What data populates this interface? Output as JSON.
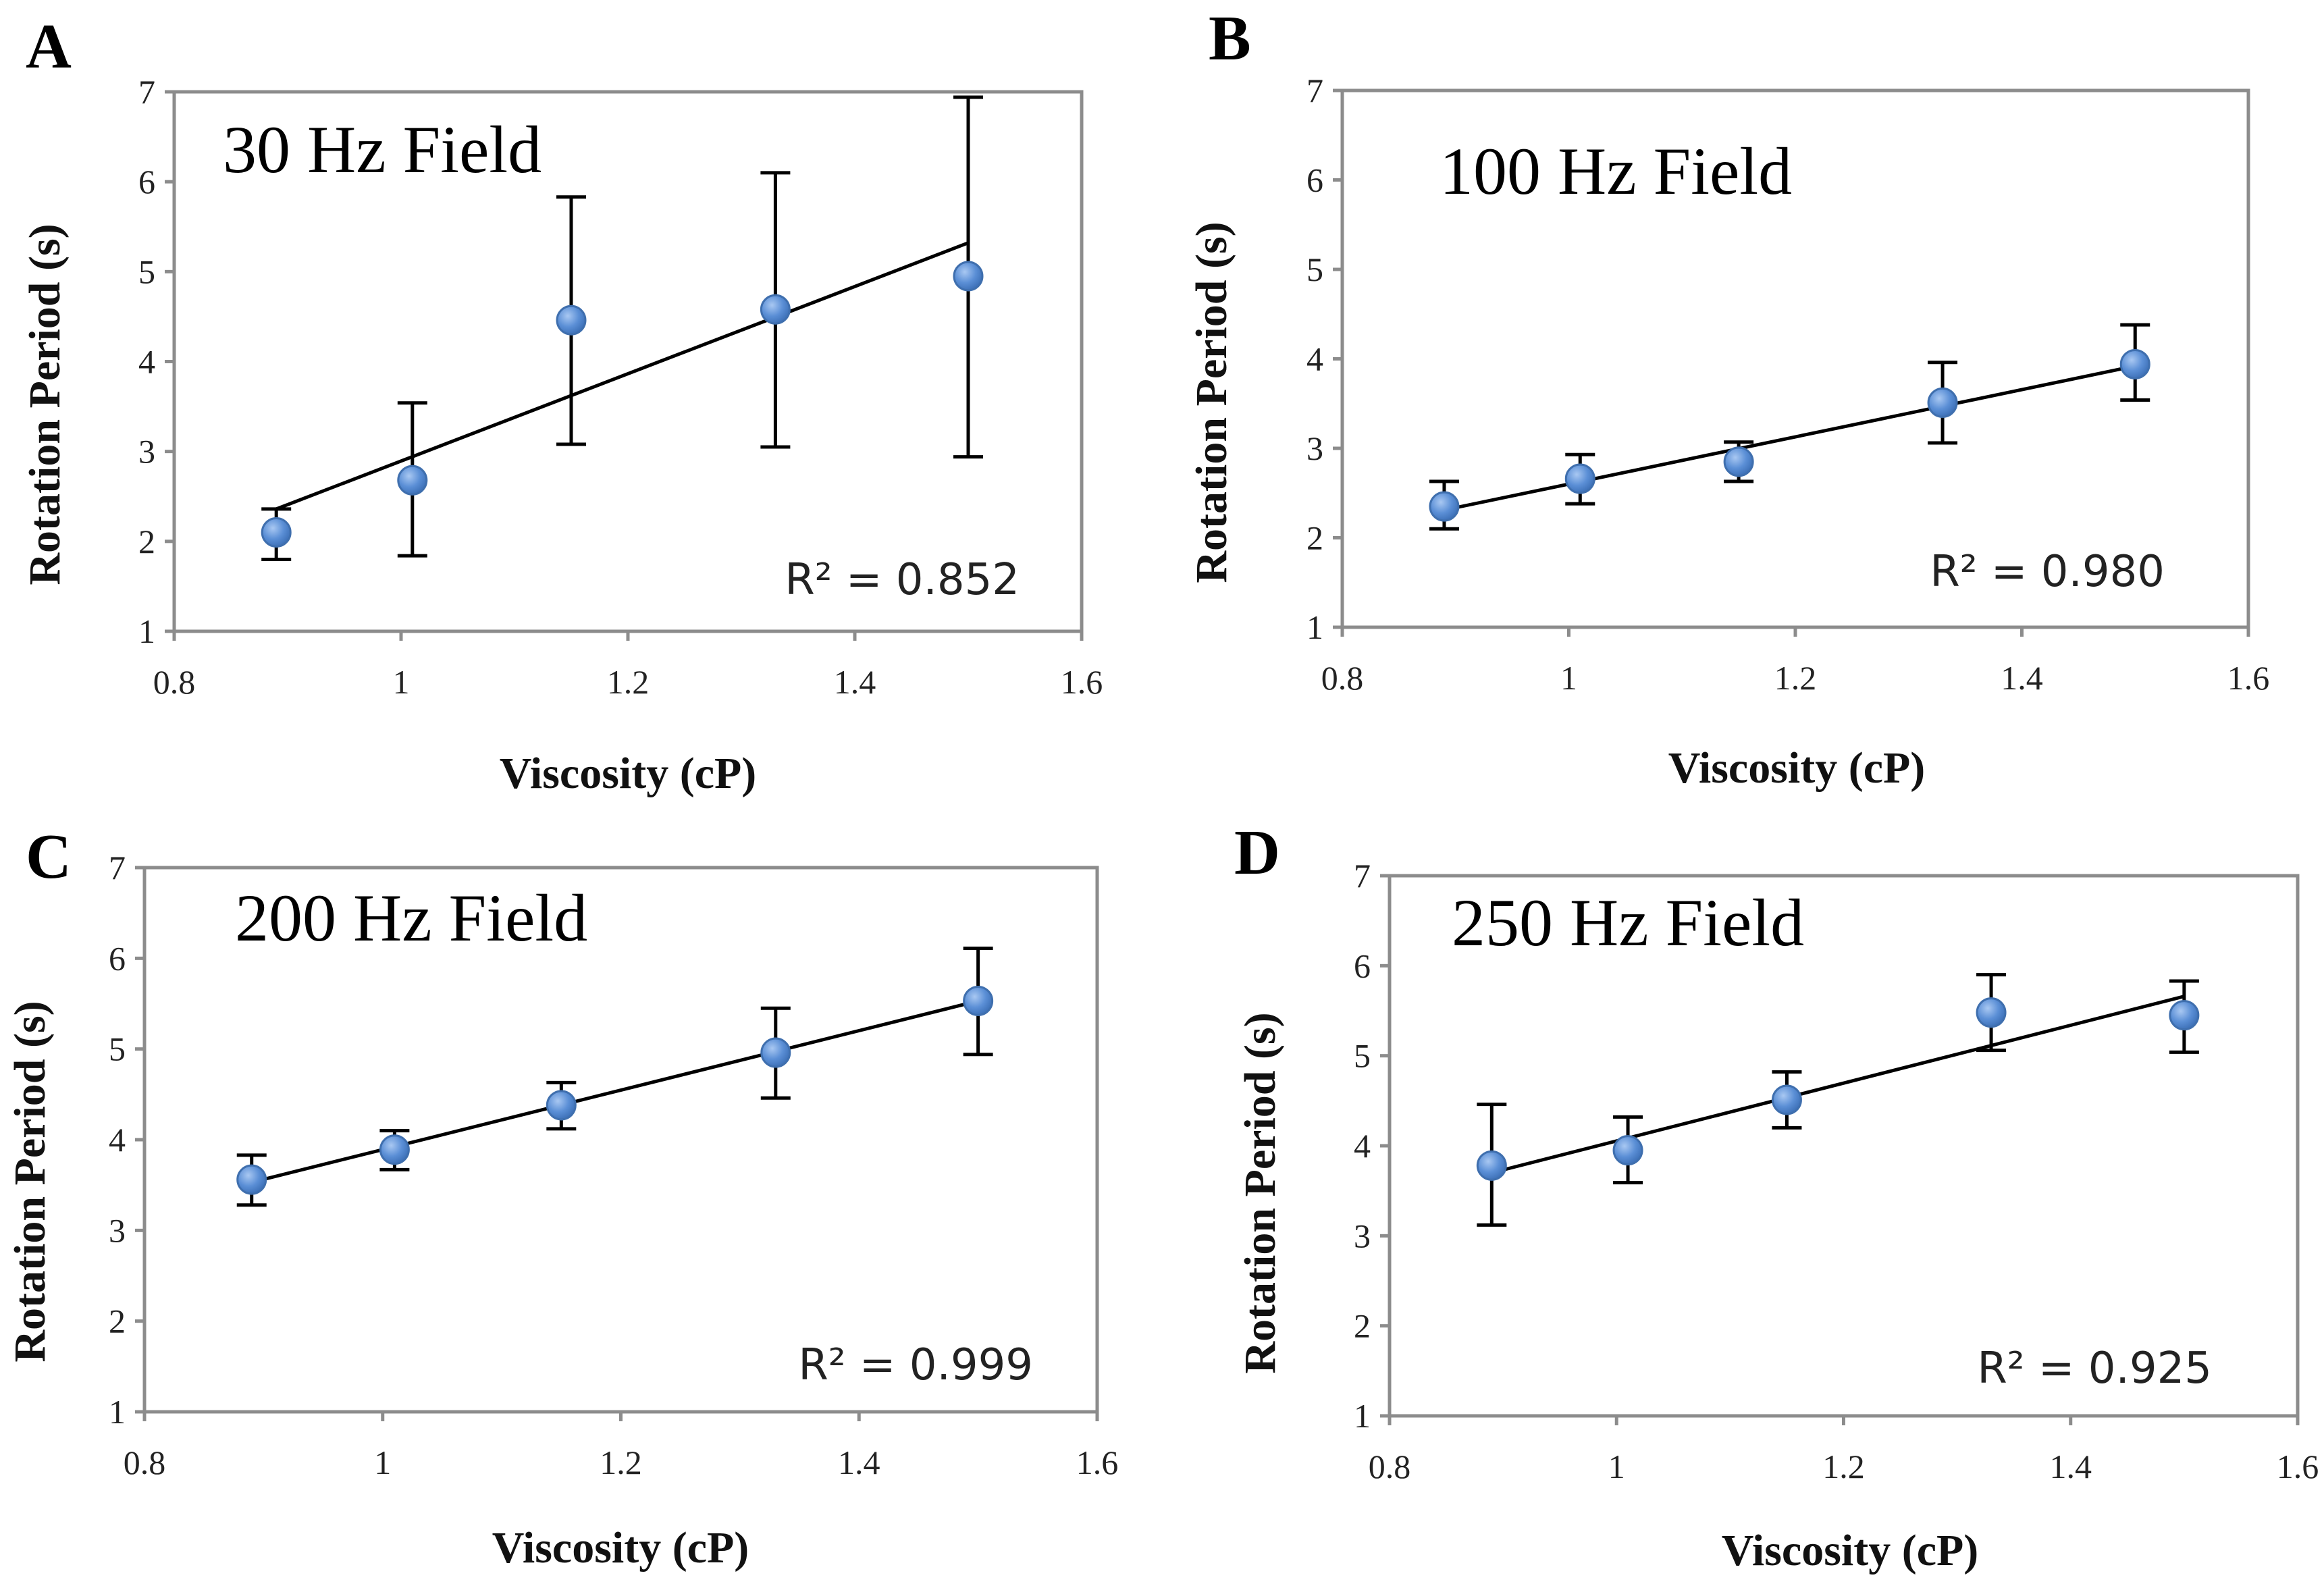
{
  "figure": {
    "panels": [
      {
        "letter": "A",
        "title": "30 Hz Field",
        "r2_label": "R² = 0.852"
      },
      {
        "letter": "B",
        "title": "100 Hz Field",
        "r2_label": "R² = 0.980"
      },
      {
        "letter": "C",
        "title": "200 Hz Field",
        "r2_label": "R² = 0.999"
      },
      {
        "letter": "D",
        "title": "250 Hz Field",
        "r2_label": "R² = 0.925"
      }
    ],
    "xlabel": "Viscosity (cP)",
    "ylabel": "Rotation Period (s)",
    "x_tick_labels": [
      "0.8",
      "1",
      "1.2",
      "1.4",
      "1.6"
    ],
    "y_tick_labels": [
      "1",
      "2",
      "3",
      "4",
      "5",
      "6",
      "7"
    ],
    "marker_color": "#5b8fd6",
    "line_color": "#000000",
    "frame_color": "#8c8c8c"
  },
  "chart_data": [
    {
      "type": "scatter",
      "panel": "A",
      "title": "30 Hz Field",
      "xlabel": "Viscosity (cP)",
      "ylabel": "Rotation Period (s)",
      "xlim": [
        0.8,
        1.6
      ],
      "ylim": [
        1,
        7
      ],
      "x": [
        0.89,
        1.01,
        1.15,
        1.33,
        1.5
      ],
      "y": [
        2.1,
        2.68,
        4.46,
        4.58,
        4.95
      ],
      "y_err_low": [
        1.8,
        1.84,
        3.08,
        3.05,
        2.94
      ],
      "y_err_high": [
        2.36,
        3.54,
        5.83,
        6.1,
        6.94
      ],
      "trendline": {
        "x": [
          0.89,
          1.5
        ],
        "y": [
          2.36,
          5.32
        ]
      },
      "r2": "R² = 0.852"
    },
    {
      "type": "scatter",
      "panel": "B",
      "title": "100 Hz Field",
      "xlabel": "Viscosity (cP)",
      "ylabel": "Rotation Period (s)",
      "xlim": [
        0.8,
        1.6
      ],
      "ylim": [
        1,
        7
      ],
      "x": [
        0.89,
        1.01,
        1.15,
        1.33,
        1.5
      ],
      "y": [
        2.35,
        2.66,
        2.85,
        3.51,
        3.94
      ],
      "y_err_low": [
        2.1,
        2.38,
        2.63,
        3.06,
        3.54
      ],
      "y_err_high": [
        2.63,
        2.93,
        3.07,
        3.96,
        4.38
      ],
      "trendline": {
        "x": [
          0.89,
          1.5
        ],
        "y": [
          2.31,
          3.92
        ]
      },
      "r2": "R² = 0.980"
    },
    {
      "type": "scatter",
      "panel": "C",
      "title": "200 Hz Field",
      "xlabel": "Viscosity (cP)",
      "ylabel": "Rotation Period (s)",
      "xlim": [
        0.8,
        1.6
      ],
      "ylim": [
        1,
        7
      ],
      "x": [
        0.89,
        1.01,
        1.15,
        1.33,
        1.5
      ],
      "y": [
        3.56,
        3.89,
        4.38,
        4.96,
        5.53
      ],
      "y_err_low": [
        3.28,
        3.67,
        4.12,
        4.46,
        4.94
      ],
      "y_err_high": [
        3.83,
        4.1,
        4.63,
        5.45,
        6.11
      ],
      "trendline": {
        "x": [
          0.89,
          1.5
        ],
        "y": [
          3.53,
          5.53
        ]
      },
      "r2": "R² = 0.999"
    },
    {
      "type": "scatter",
      "panel": "D",
      "title": "250 Hz Field",
      "xlabel": "Viscosity (cP)",
      "ylabel": "Rotation Period (s)",
      "xlim": [
        0.8,
        1.6
      ],
      "ylim": [
        1,
        7
      ],
      "x": [
        0.89,
        1.01,
        1.15,
        1.33,
        1.5
      ],
      "y": [
        3.78,
        3.95,
        4.51,
        5.48,
        5.45
      ],
      "y_err_low": [
        3.12,
        3.59,
        4.2,
        5.06,
        5.04
      ],
      "y_err_high": [
        4.46,
        4.32,
        4.82,
        5.9,
        5.83
      ],
      "trendline": {
        "x": [
          0.89,
          1.5
        ],
        "y": [
          3.7,
          5.66
        ]
      },
      "r2": "R² = 0.925"
    }
  ]
}
